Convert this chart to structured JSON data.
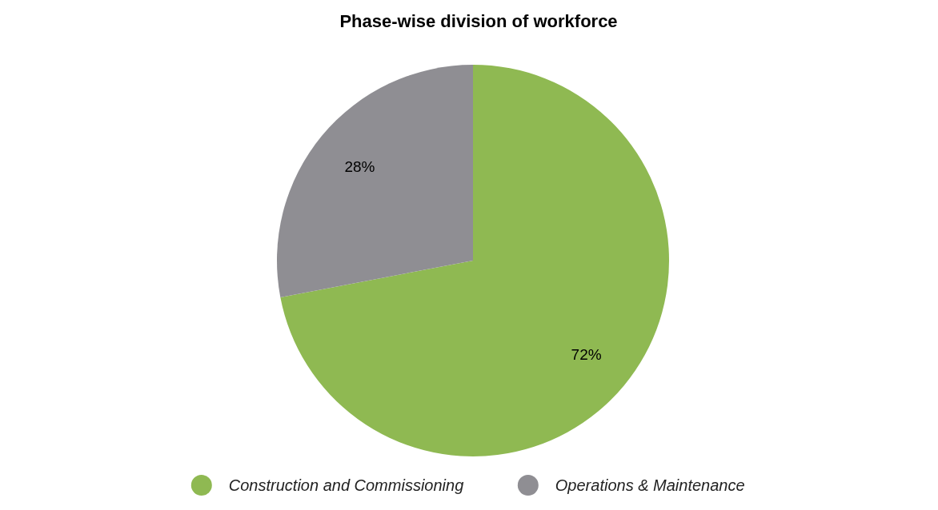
{
  "chart_data": {
    "type": "pie",
    "title": "Phase-wise division of workforce",
    "categories": [
      "Construction and Commissioning",
      "Operations & Maintenance"
    ],
    "values": [
      72,
      28
    ],
    "value_labels": [
      "72%",
      "28%"
    ],
    "colors": [
      "#8fb952",
      "#8f8e93"
    ],
    "legend": "bottom"
  }
}
